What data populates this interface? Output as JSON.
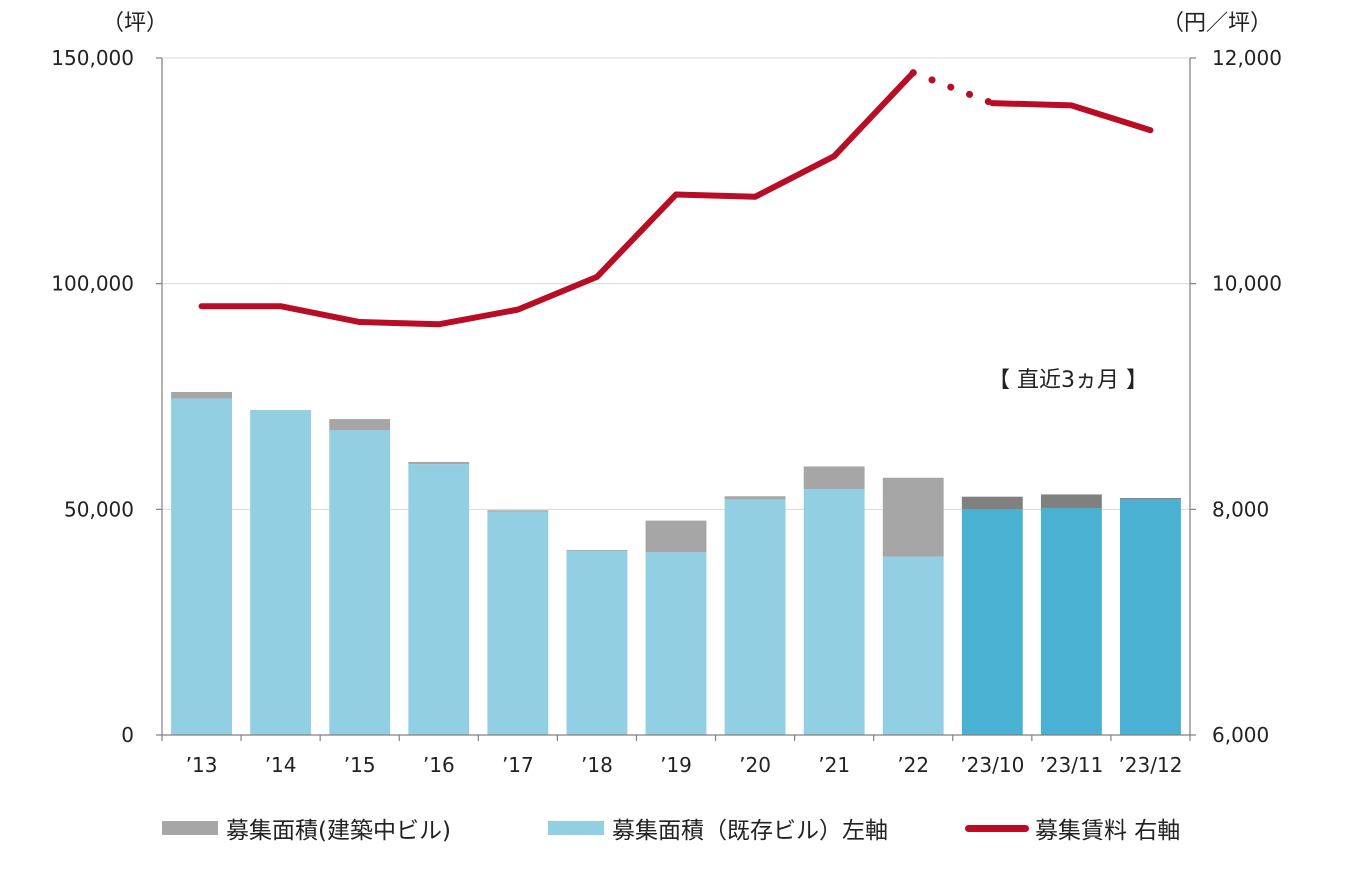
{
  "chart_data": {
    "type": "bar",
    "categories": [
      "’13",
      "’14",
      "’15",
      "’16",
      "’17",
      "’18",
      "’19",
      "’20",
      "’21",
      "’22",
      "’23/10",
      "’23/11",
      "’23/12"
    ],
    "series": [
      {
        "name": "募集面積（既存ビル）左軸",
        "type": "bar",
        "axis": "left",
        "values": [
          74500,
          72000,
          67500,
          60000,
          49500,
          40800,
          40500,
          52200,
          54500,
          39500,
          50000,
          50300,
          52200
        ]
      },
      {
        "name": "募集面積(建築中ビル)",
        "type": "bar",
        "axis": "left",
        "stacked": true,
        "values": [
          1500,
          0,
          2500,
          500,
          300,
          200,
          7000,
          700,
          5000,
          17500,
          2800,
          3000,
          300
        ]
      },
      {
        "name": "募集賃料 右軸",
        "type": "line",
        "axis": "right",
        "values": [
          9800,
          9800,
          9660,
          9640,
          9770,
          10060,
          10790,
          10770,
          11130,
          11870,
          11600,
          11580,
          11360
        ]
      }
    ],
    "left_axis": {
      "unit": "（坪）",
      "ylim": [
        0,
        150000
      ],
      "ticks": [
        "0",
        "50,000",
        "100,000",
        "150,000"
      ],
      "tick_values": [
        0,
        50000,
        100000,
        150000
      ]
    },
    "right_axis": {
      "unit": "（円／坪）",
      "ylim": [
        6000,
        12000
      ],
      "ticks": [
        "6,000",
        "8,000",
        "10,000",
        "12,000"
      ],
      "tick_values": [
        6000,
        8000,
        10000,
        12000
      ]
    },
    "annotation": "【 直近3ヵ月 】",
    "colors": {
      "existing": "#93cfe2",
      "existing_recent": "#4ab1d3",
      "construction": "#a6a6a6",
      "construction_recent": "#808080",
      "rent_line": "#b80d24",
      "grid": "#d9d9d9",
      "axis": "#808080"
    },
    "legend": {
      "position": "bottom",
      "items": [
        {
          "label": "募集面積(建築中ビル)",
          "color": "#a6a6a6",
          "kind": "box"
        },
        {
          "label": "募集面積（既存ビル）左軸",
          "color": "#93cfe2",
          "kind": "box"
        },
        {
          "label": "募集賃料 右軸",
          "color": "#b80d24",
          "kind": "line"
        }
      ]
    },
    "grid": true
  }
}
